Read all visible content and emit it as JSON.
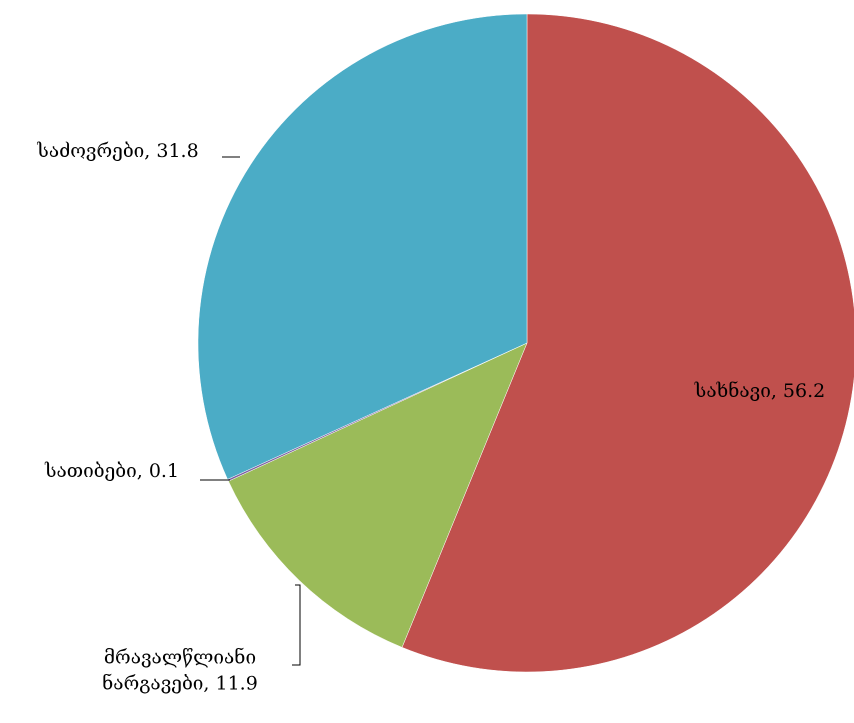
{
  "chart_data": {
    "type": "pie",
    "categories": [
      "სახნავი",
      "მრავალწლიანი ნარგავები",
      "სათიბები",
      "საძოვრები"
    ],
    "values": [
      56.2,
      11.9,
      0.1,
      31.8
    ],
    "value_labels": [
      "სახნავი, 56.2",
      "მრავალწლიანი ნარგავები, 11.9",
      "სათიბები, 0.1",
      "საძოვრები, 31.8"
    ],
    "colors": [
      "#c0504d",
      "#9bbb59",
      "#8064a2",
      "#4bacc6"
    ]
  }
}
